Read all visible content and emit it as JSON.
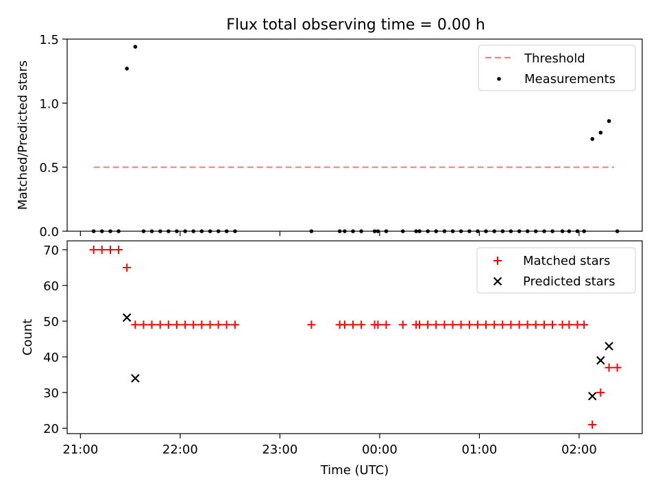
{
  "title": "Flux total observing time = 0.00 h",
  "chart_data": [
    {
      "type": "scatter",
      "ylabel": "Matched/Predicted stars",
      "xlabel": "",
      "ylim": [
        0,
        1.5
      ],
      "yticks": [
        "0.0",
        "0.5",
        "1.0",
        "1.5"
      ],
      "threshold": {
        "name": "Threshold",
        "value": 0.5,
        "x_start": 21.133,
        "x_end": 26.35,
        "color": "#ff7f7f"
      },
      "series": [
        {
          "name": "Measurements",
          "color": "#000000",
          "points": [
            [
              21.133,
              0
            ],
            [
              21.216,
              0
            ],
            [
              21.3,
              0
            ],
            [
              21.383,
              0
            ],
            [
              21.466,
              1.27
            ],
            [
              21.55,
              1.44
            ],
            [
              21.633,
              0
            ],
            [
              21.716,
              0
            ],
            [
              21.8,
              0
            ],
            [
              21.883,
              0
            ],
            [
              21.966,
              0
            ],
            [
              22.05,
              0
            ],
            [
              22.133,
              0
            ],
            [
              22.216,
              0
            ],
            [
              22.3,
              0
            ],
            [
              22.383,
              0
            ],
            [
              22.466,
              0
            ],
            [
              22.55,
              0
            ],
            [
              23.316,
              0
            ],
            [
              23.6,
              0
            ],
            [
              23.65,
              0
            ],
            [
              23.733,
              0
            ],
            [
              23.816,
              0
            ],
            [
              23.95,
              0
            ],
            [
              23.983,
              0
            ],
            [
              24.066,
              0
            ],
            [
              24.233,
              0
            ],
            [
              24.366,
              0
            ],
            [
              24.4,
              0
            ],
            [
              24.483,
              0
            ],
            [
              24.566,
              0
            ],
            [
              24.65,
              0
            ],
            [
              24.733,
              0
            ],
            [
              24.816,
              0
            ],
            [
              24.9,
              0
            ],
            [
              24.983,
              0
            ],
            [
              25.066,
              0
            ],
            [
              25.15,
              0
            ],
            [
              25.233,
              0
            ],
            [
              25.316,
              0
            ],
            [
              25.4,
              0
            ],
            [
              25.483,
              0
            ],
            [
              25.566,
              0
            ],
            [
              25.65,
              0
            ],
            [
              25.733,
              0
            ],
            [
              25.833,
              0
            ],
            [
              25.9,
              0
            ],
            [
              25.983,
              0
            ],
            [
              26.05,
              0
            ],
            [
              26.133,
              0.72
            ],
            [
              26.216,
              0.77
            ],
            [
              26.3,
              0.86
            ],
            [
              26.383,
              0
            ]
          ]
        }
      ],
      "legend": "top-right",
      "legend_entries": [
        "Threshold",
        "Measurements"
      ]
    },
    {
      "type": "scatter",
      "xlabel": "Time (UTC)",
      "ylabel": "Count",
      "ylim": [
        18.5,
        72.5
      ],
      "yticks": [
        "20",
        "30",
        "40",
        "50",
        "60",
        "70"
      ],
      "xlim": [
        20.867,
        26.633
      ],
      "xticks": [
        {
          "value": 21,
          "label": "21:00"
        },
        {
          "value": 22,
          "label": "22:00"
        },
        {
          "value": 23,
          "label": "23:00"
        },
        {
          "value": 24,
          "label": "00:00"
        },
        {
          "value": 25,
          "label": "01:00"
        },
        {
          "value": 26,
          "label": "02:00"
        }
      ],
      "series": [
        {
          "name": "Matched stars",
          "color": "#ff0000",
          "marker": "plus",
          "points": [
            [
              21.133,
              70
            ],
            [
              21.216,
              70
            ],
            [
              21.3,
              70
            ],
            [
              21.383,
              70
            ],
            [
              21.466,
              65
            ],
            [
              21.55,
              49
            ],
            [
              21.633,
              49
            ],
            [
              21.716,
              49
            ],
            [
              21.8,
              49
            ],
            [
              21.883,
              49
            ],
            [
              21.966,
              49
            ],
            [
              22.05,
              49
            ],
            [
              22.133,
              49
            ],
            [
              22.216,
              49
            ],
            [
              22.3,
              49
            ],
            [
              22.383,
              49
            ],
            [
              22.466,
              49
            ],
            [
              22.55,
              49
            ],
            [
              23.316,
              49
            ],
            [
              23.6,
              49
            ],
            [
              23.65,
              49
            ],
            [
              23.733,
              49
            ],
            [
              23.816,
              49
            ],
            [
              23.95,
              49
            ],
            [
              23.983,
              49
            ],
            [
              24.066,
              49
            ],
            [
              24.233,
              49
            ],
            [
              24.366,
              49
            ],
            [
              24.4,
              49
            ],
            [
              24.483,
              49
            ],
            [
              24.566,
              49
            ],
            [
              24.65,
              49
            ],
            [
              24.733,
              49
            ],
            [
              24.816,
              49
            ],
            [
              24.9,
              49
            ],
            [
              24.983,
              49
            ],
            [
              25.066,
              49
            ],
            [
              25.15,
              49
            ],
            [
              25.233,
              49
            ],
            [
              25.316,
              49
            ],
            [
              25.4,
              49
            ],
            [
              25.483,
              49
            ],
            [
              25.566,
              49
            ],
            [
              25.65,
              49
            ],
            [
              25.733,
              49
            ],
            [
              25.833,
              49
            ],
            [
              25.9,
              49
            ],
            [
              25.983,
              49
            ],
            [
              26.05,
              49
            ],
            [
              26.133,
              21
            ],
            [
              26.216,
              30
            ],
            [
              26.3,
              37
            ],
            [
              26.383,
              37
            ]
          ]
        },
        {
          "name": "Predicted stars",
          "color": "#000000",
          "marker": "x",
          "points": [
            [
              21.466,
              51
            ],
            [
              21.55,
              34
            ],
            [
              26.133,
              29
            ],
            [
              26.216,
              39
            ],
            [
              26.3,
              43
            ]
          ]
        }
      ],
      "legend": "top-right",
      "legend_entries": [
        "Matched stars",
        "Predicted stars"
      ]
    }
  ]
}
